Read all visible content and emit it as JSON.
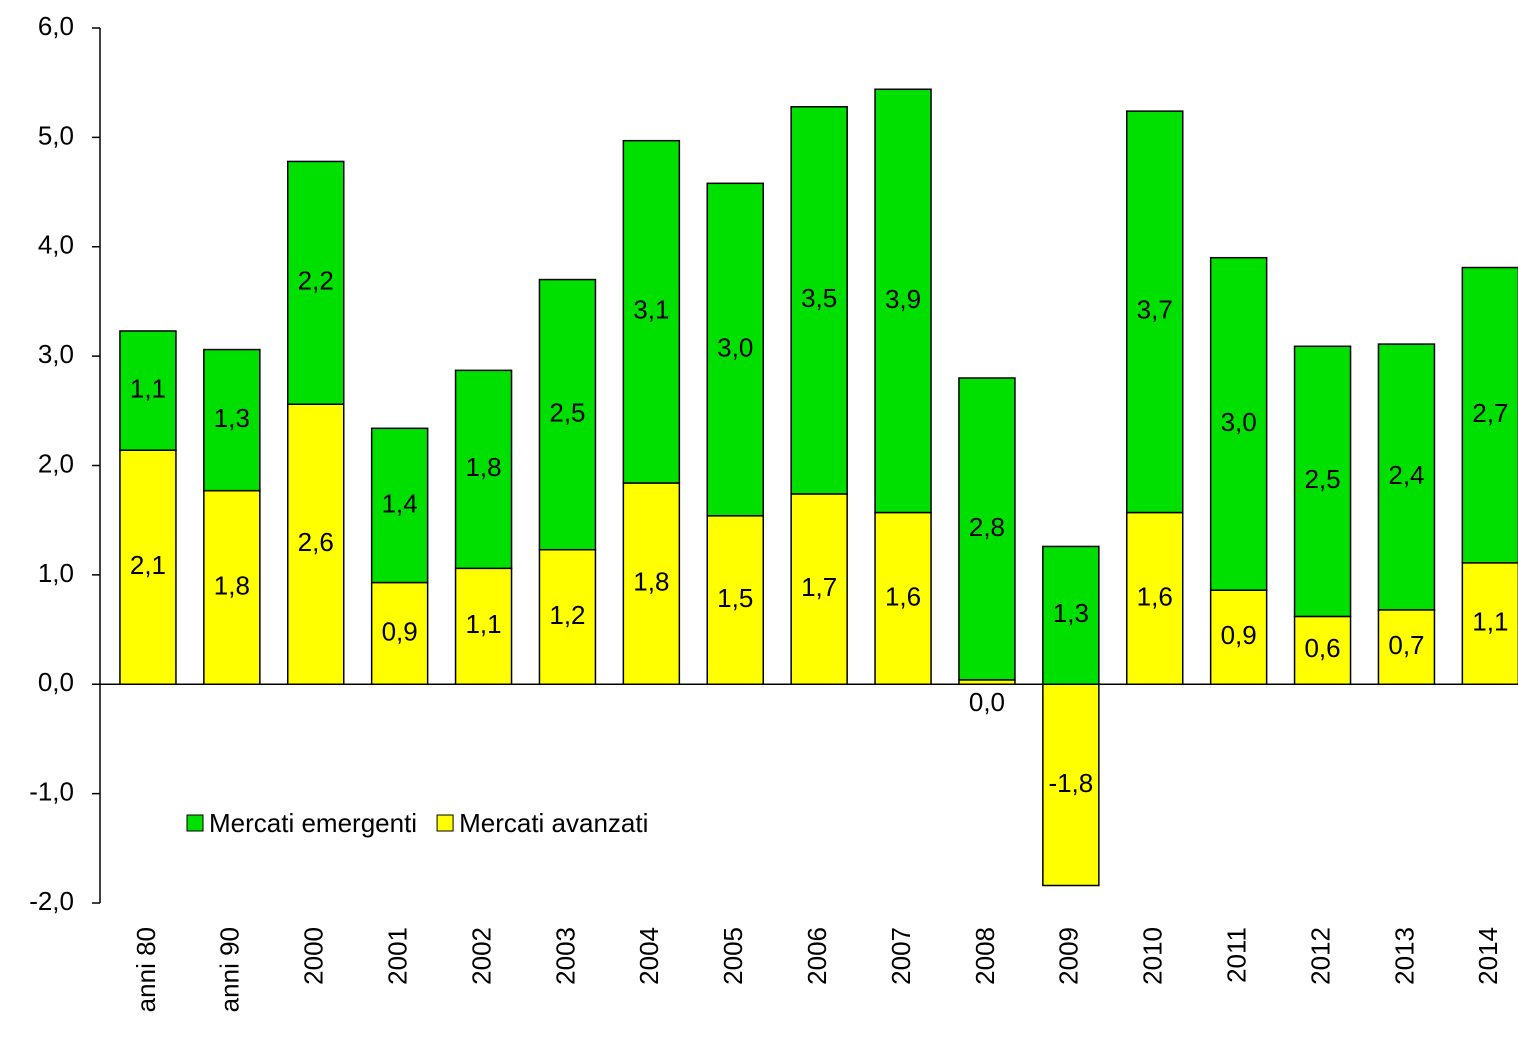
{
  "chart_data": {
    "type": "stacked_bar",
    "categories": [
      "anni 80",
      "anni 90",
      "2000",
      "2001",
      "2002",
      "2003",
      "2004",
      "2005",
      "2006",
      "2007",
      "2008",
      "2009",
      "2010",
      "2011",
      "2012",
      "2013",
      "2014"
    ],
    "series": [
      {
        "name": "Mercati avanzati",
        "color": "#ffff00",
        "values": [
          2.14,
          1.77,
          2.56,
          0.93,
          1.06,
          1.23,
          1.84,
          1.54,
          1.74,
          1.57,
          0.04,
          -1.84,
          1.57,
          0.86,
          0.62,
          0.68,
          1.11
        ],
        "value_labels": [
          "2,1",
          "1,8",
          "2,6",
          "0,9",
          "1,1",
          "1,2",
          "1,8",
          "1,5",
          "1,7",
          "1,6",
          "0,0",
          "-1,8",
          "1,6",
          "0,9",
          "0,6",
          "0,7",
          "1,1"
        ]
      },
      {
        "name": "Mercati emergenti",
        "color": "#00e000",
        "values": [
          1.09,
          1.29,
          2.22,
          1.41,
          1.81,
          2.47,
          3.13,
          3.04,
          3.54,
          3.87,
          2.76,
          1.26,
          3.67,
          3.04,
          2.47,
          2.43,
          2.7
        ],
        "value_labels": [
          "1,1",
          "1,3",
          "2,2",
          "1,4",
          "1,8",
          "2,5",
          "3,1",
          "3,0",
          "3,5",
          "3,9",
          "2,8",
          "1,3",
          "3,7",
          "3,0",
          "2,5",
          "2,4",
          "2,7"
        ]
      }
    ],
    "ylim": [
      -2,
      6
    ],
    "yticks": [
      {
        "value": -2,
        "label": "-2,0"
      },
      {
        "value": -1,
        "label": "-1,0"
      },
      {
        "value": 0,
        "label": "0,0"
      },
      {
        "value": 1,
        "label": "1,0"
      },
      {
        "value": 2,
        "label": "2,0"
      },
      {
        "value": 3,
        "label": "3,0"
      },
      {
        "value": 4,
        "label": "4,0"
      },
      {
        "value": 5,
        "label": "5,0"
      },
      {
        "value": 6,
        "label": "6,0"
      }
    ],
    "grid": false,
    "legend": "lower left"
  }
}
